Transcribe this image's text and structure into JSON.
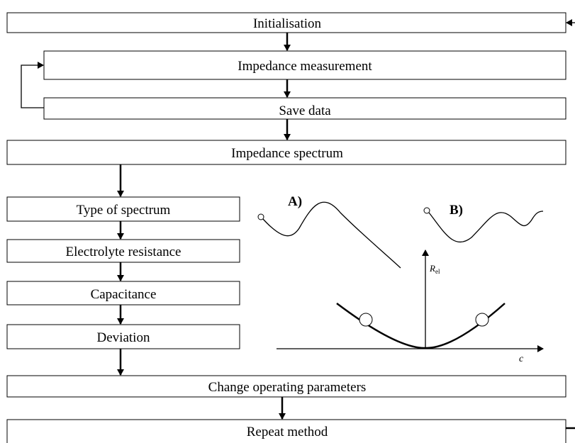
{
  "boxes": [
    "Initialisation",
    "Impedance measurement",
    "Save data",
    "Impedance spectrum",
    "Type of spectrum",
    "Electrolyte resistance",
    "Capacitance",
    "Deviation",
    "Change operating parameters",
    "Repeat method"
  ],
  "plot": {
    "label_a": "A)",
    "label_b": "B)",
    "y_axis": "R",
    "y_axis_sub": "el",
    "x_axis": "c"
  }
}
